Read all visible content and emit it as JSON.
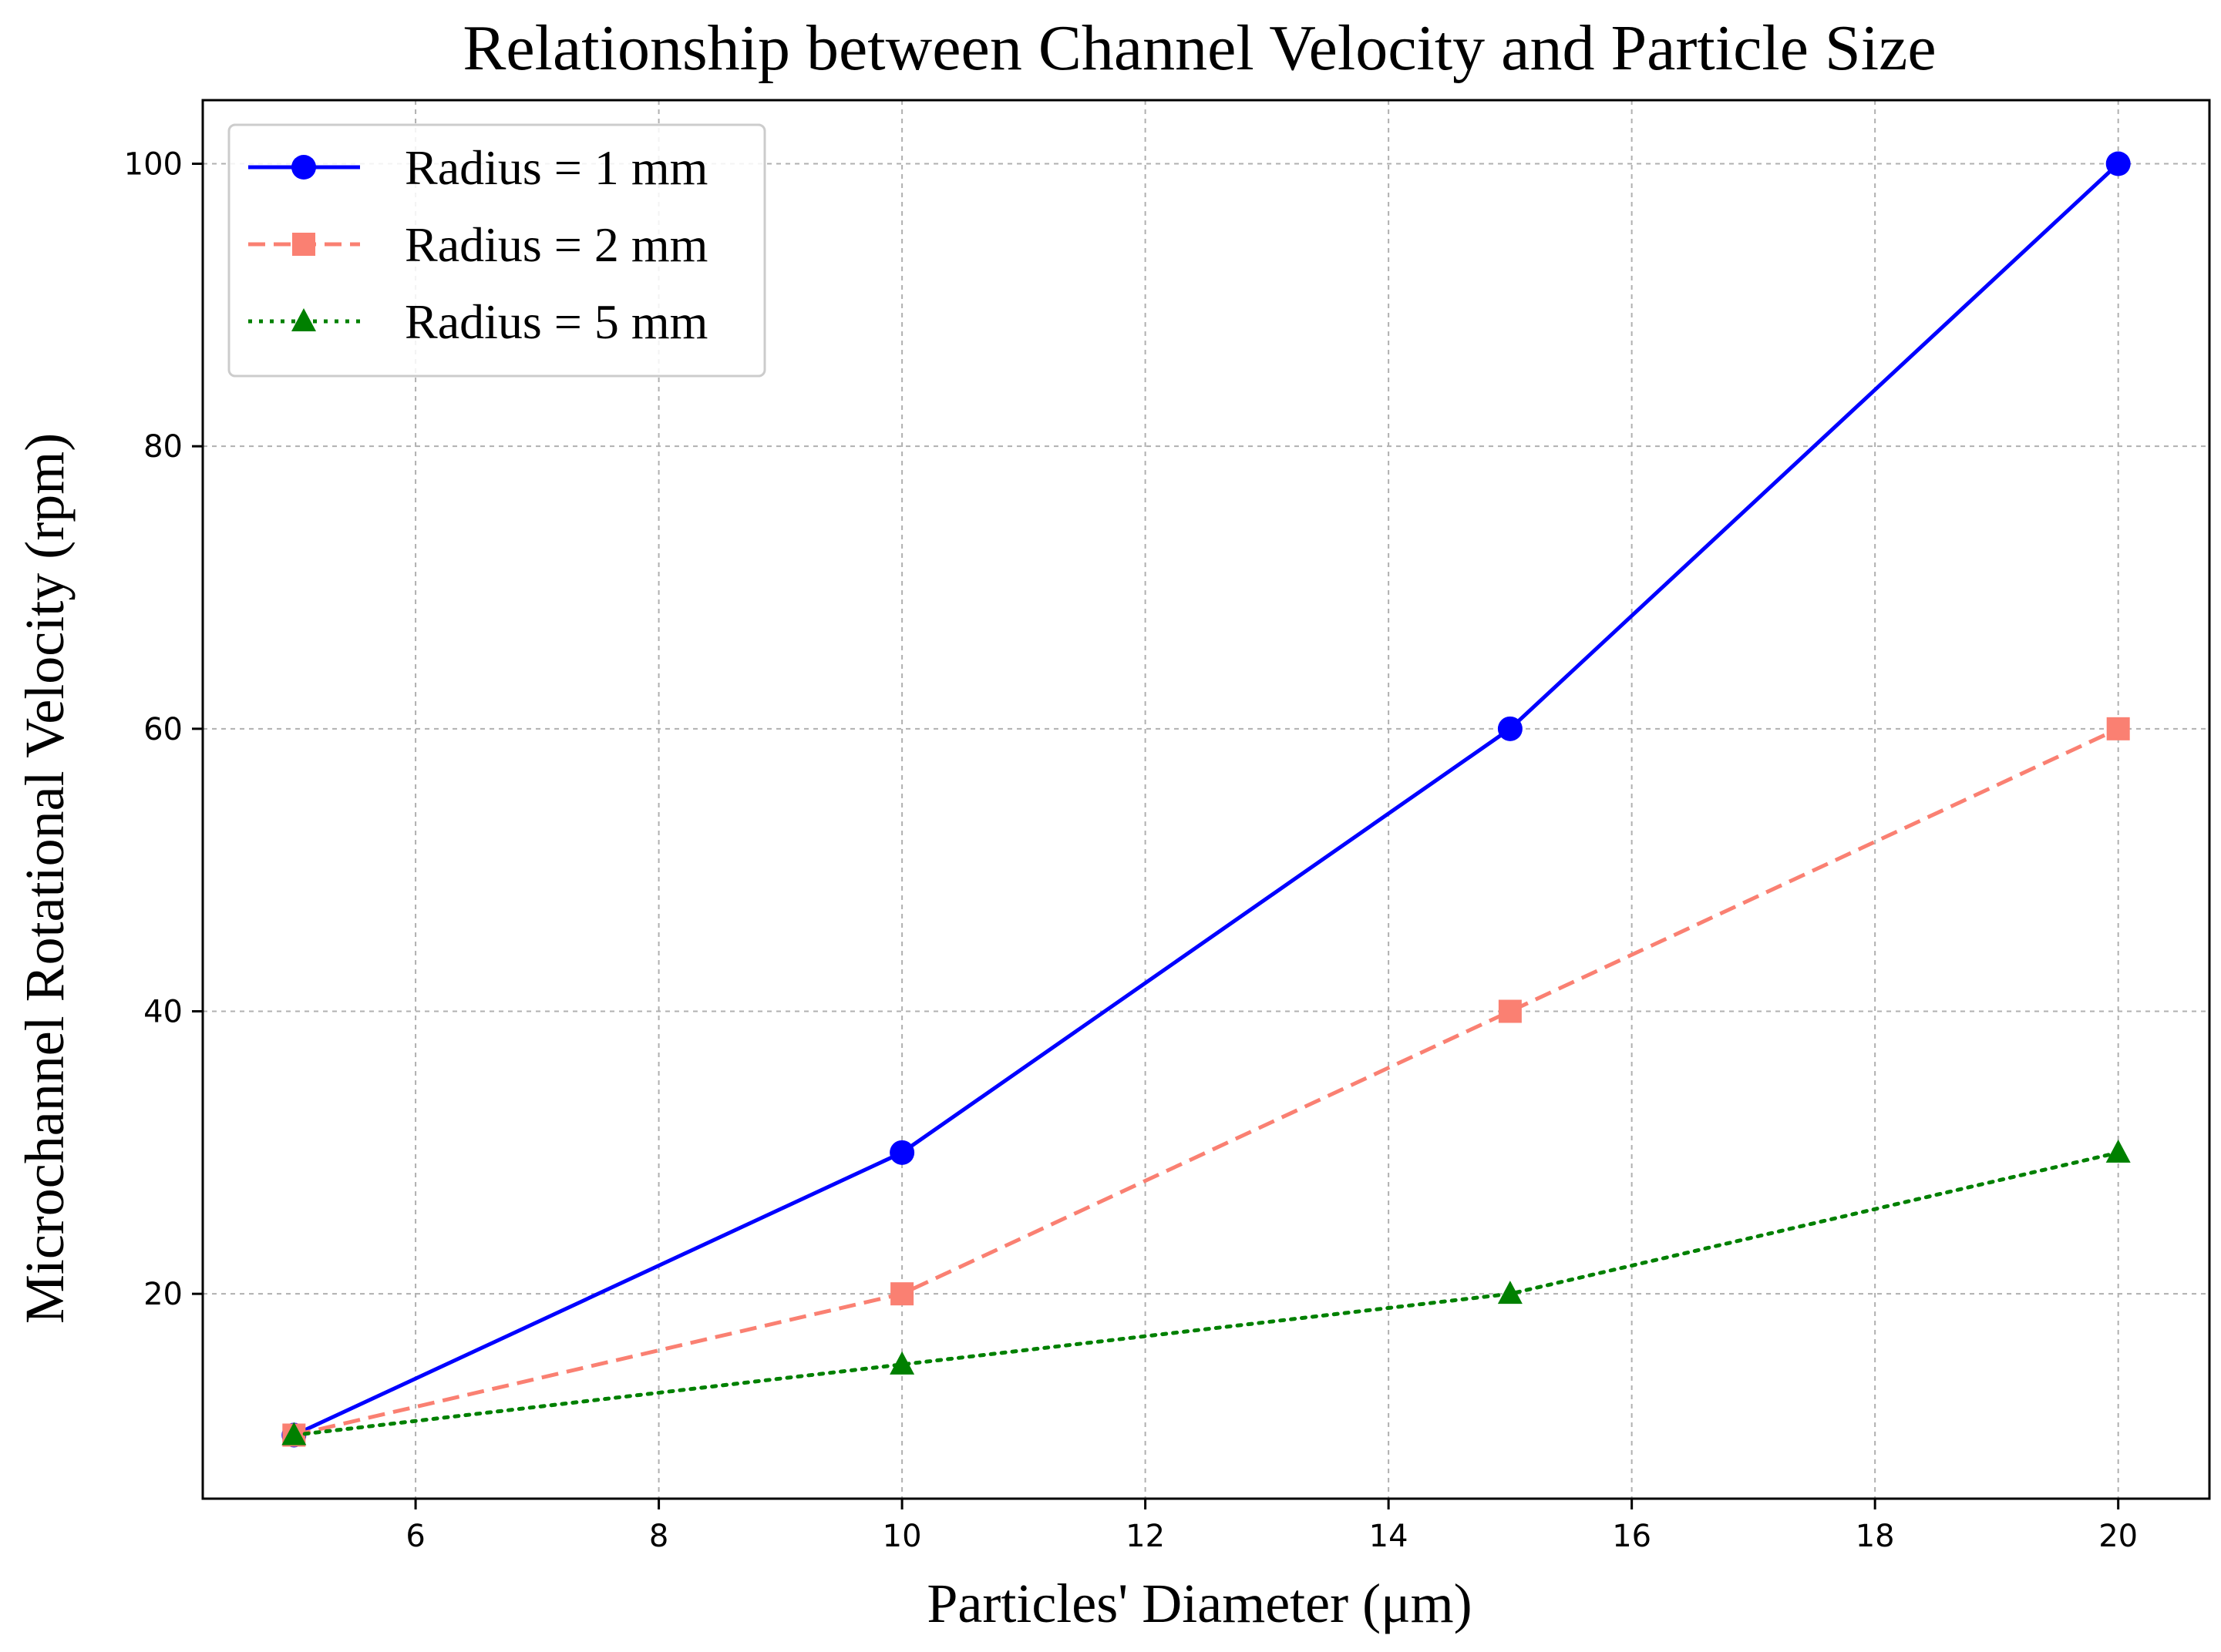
{
  "chart_data": {
    "type": "line",
    "title": "Relationship between Channel Velocity and Particle Size",
    "xlabel": "Particles' Diameter (μm)",
    "ylabel": "Microchannel Rotational Velocity (rpm)",
    "xlim": [
      4.25,
      20.75
    ],
    "ylim": [
      5.5,
      104.5
    ],
    "xticks": [
      6,
      8,
      10,
      12,
      14,
      16,
      18,
      20
    ],
    "yticks": [
      20,
      40,
      60,
      80,
      100
    ],
    "grid": true,
    "legend_position": "top-left",
    "x": [
      5,
      10,
      15,
      20
    ],
    "series": [
      {
        "name": "Radius = 1 mm",
        "values": [
          10,
          30,
          60,
          100
        ],
        "color": "#0000ff",
        "line_style": "solid",
        "marker": "circle"
      },
      {
        "name": "Radius = 2 mm",
        "values": [
          10,
          20,
          40,
          60
        ],
        "color": "#fa8072",
        "line_style": "dashed",
        "marker": "square"
      },
      {
        "name": "Radius = 5 mm",
        "values": [
          10,
          15,
          20,
          30
        ],
        "color": "#008000",
        "line_style": "dotted",
        "marker": "triangle"
      }
    ]
  }
}
